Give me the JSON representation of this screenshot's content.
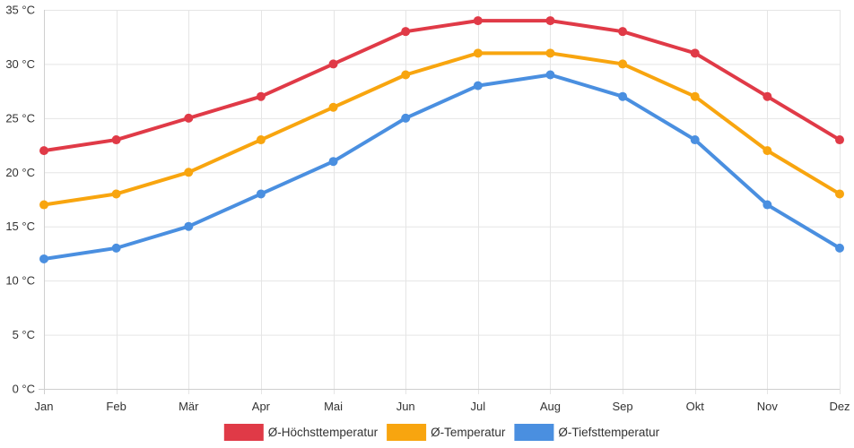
{
  "chart_data": {
    "type": "line",
    "title": "",
    "xlabel": "",
    "ylabel": "",
    "categories": [
      "Jan",
      "Feb",
      "Mär",
      "Apr",
      "Mai",
      "Jun",
      "Jul",
      "Aug",
      "Sep",
      "Okt",
      "Nov",
      "Dez"
    ],
    "ylim": [
      0,
      35
    ],
    "yticks": [
      0,
      5,
      10,
      15,
      20,
      25,
      30,
      35
    ],
    "y_unit": "°C",
    "grid": true,
    "legend_position": "bottom-center",
    "series": [
      {
        "name": "Ø-Höchsttemperatur",
        "color": "#e03a47",
        "values": [
          22,
          23,
          25,
          27,
          30,
          33,
          34,
          34,
          33,
          31,
          27,
          23
        ]
      },
      {
        "name": "Ø-Temperatur",
        "color": "#f8a50f",
        "values": [
          17,
          18,
          20,
          23,
          26,
          29,
          31,
          31,
          30,
          27,
          22,
          18
        ]
      },
      {
        "name": "Ø-Tiefsttemperatur",
        "color": "#4a8fe0",
        "values": [
          12,
          13,
          15,
          18,
          21,
          25,
          28,
          29,
          27,
          23,
          17,
          13
        ]
      }
    ]
  }
}
